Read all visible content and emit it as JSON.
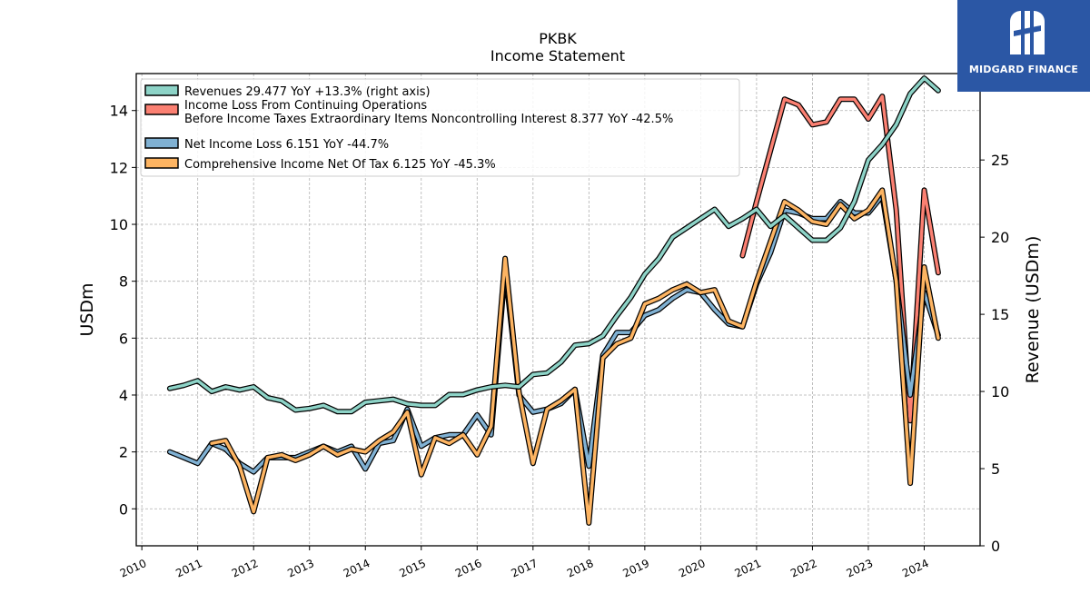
{
  "chart_data": {
    "type": "line",
    "title": "PKBK",
    "subtitle": "Income Statement",
    "ylabel_left": "USDm",
    "ylabel_right": "Revenue (USDm)",
    "ylim_left": [
      -1.3,
      15.3
    ],
    "ylim_right": [
      0,
      30.6
    ],
    "yticks_left": [
      0,
      2,
      4,
      6,
      8,
      10,
      12,
      14
    ],
    "yticks_right": [
      0,
      5,
      10,
      15,
      20,
      25,
      30
    ],
    "xlim": [
      2009.9,
      2025.0
    ],
    "xticks": [
      2010,
      2011,
      2012,
      2013,
      2014,
      2015,
      2016,
      2017,
      2018,
      2019,
      2020,
      2021,
      2022,
      2023,
      2024
    ],
    "grid": true,
    "legend_position": "top-left",
    "series": [
      {
        "name": "Revenues  29.477 YoY +13.3% (right axis)",
        "axis": "right",
        "color": "#8dd3c7",
        "x": [
          2010.5,
          2010.75,
          2011.0,
          2011.25,
          2011.5,
          2011.75,
          2012.0,
          2012.25,
          2012.5,
          2012.75,
          2013.0,
          2013.25,
          2013.5,
          2013.75,
          2014.0,
          2014.25,
          2014.5,
          2014.75,
          2015.0,
          2015.25,
          2015.5,
          2015.75,
          2016.0,
          2016.25,
          2016.5,
          2016.75,
          2017.0,
          2017.25,
          2017.5,
          2017.75,
          2018.0,
          2018.25,
          2018.5,
          2018.75,
          2019.0,
          2019.25,
          2019.5,
          2019.75,
          2020.0,
          2020.25,
          2020.5,
          2020.75,
          2021.0,
          2021.25,
          2021.5,
          2021.75,
          2022.0,
          2022.25,
          2022.5,
          2022.75,
          2023.0,
          2023.25,
          2023.5,
          2023.75,
          2024.0,
          2024.25
        ],
        "values": [
          10.2,
          10.4,
          10.7,
          10.0,
          10.3,
          10.1,
          10.3,
          9.6,
          9.4,
          8.8,
          8.9,
          9.1,
          8.7,
          8.7,
          9.3,
          9.4,
          9.5,
          9.2,
          9.1,
          9.1,
          9.8,
          9.8,
          10.1,
          10.3,
          10.4,
          10.3,
          11.1,
          11.2,
          11.9,
          13.0,
          13.1,
          13.6,
          14.9,
          16.1,
          17.6,
          18.6,
          20.0,
          20.6,
          21.2,
          21.8,
          20.7,
          21.2,
          21.8,
          20.7,
          21.4,
          20.6,
          19.8,
          19.8,
          20.6,
          22.3,
          25.0,
          26.0,
          27.3,
          29.3,
          30.3,
          29.5
        ]
      },
      {
        "name": "Income Loss From Continuing Operations Before Income Taxes Extraordinary Items Noncontrolling Interest  8.377 YoY -42.5%",
        "legend_lines": [
          "Income Loss From Continuing Operations",
          "Before Income Taxes Extraordinary Items Noncontrolling Interest  8.377 YoY -42.5%"
        ],
        "axis": "left",
        "color": "#fb8072",
        "x": [
          2020.75,
          2021.0,
          2021.25,
          2021.5,
          2021.75,
          2022.0,
          2022.25,
          2022.5,
          2022.75,
          2023.0,
          2023.25,
          2023.5,
          2023.75,
          2024.0,
          2024.25
        ],
        "values": [
          8.9,
          10.8,
          12.6,
          14.4,
          14.2,
          13.5,
          13.6,
          14.4,
          14.4,
          13.7,
          14.5,
          10.5,
          3.1,
          11.2,
          8.3
        ]
      },
      {
        "name": "Net Income Loss  6.151 YoY -44.7%",
        "axis": "left",
        "color": "#80b1d3",
        "x": [
          2010.5,
          2010.75,
          2011.0,
          2011.25,
          2011.5,
          2011.75,
          2012.0,
          2012.25,
          2012.5,
          2012.75,
          2013.0,
          2013.25,
          2013.5,
          2013.75,
          2014.0,
          2014.25,
          2014.5,
          2014.75,
          2015.0,
          2015.25,
          2015.5,
          2015.75,
          2016.0,
          2016.25,
          2016.5,
          2016.75,
          2017.0,
          2017.25,
          2017.5,
          2017.75,
          2018.0,
          2018.25,
          2018.5,
          2018.75,
          2019.0,
          2019.25,
          2019.5,
          2019.75,
          2020.0,
          2020.25,
          2020.5,
          2020.75,
          2021.0,
          2021.25,
          2021.5,
          2021.75,
          2022.0,
          2022.25,
          2022.5,
          2022.75,
          2023.0,
          2023.25,
          2023.5,
          2023.75,
          2024.0,
          2024.25
        ],
        "values": [
          2.0,
          1.8,
          1.6,
          2.3,
          2.1,
          1.6,
          1.3,
          1.8,
          1.8,
          1.8,
          2.0,
          2.2,
          2.0,
          2.2,
          1.4,
          2.3,
          2.4,
          3.5,
          2.2,
          2.5,
          2.6,
          2.6,
          3.3,
          2.6,
          8.4,
          4.0,
          3.4,
          3.5,
          3.7,
          4.2,
          1.5,
          5.4,
          6.2,
          6.2,
          6.8,
          7.0,
          7.4,
          7.7,
          7.6,
          7.0,
          6.5,
          6.4,
          7.9,
          9.0,
          10.5,
          10.4,
          10.2,
          10.2,
          10.8,
          10.4,
          10.4,
          11.0,
          8.0,
          4.0,
          7.6,
          6.1
        ]
      },
      {
        "name": "Comprehensive Income Net Of Tax  6.125 YoY -45.3%",
        "axis": "left",
        "color": "#fdb462",
        "x": [
          2011.25,
          2011.5,
          2011.75,
          2012.0,
          2012.25,
          2012.5,
          2012.75,
          2013.0,
          2013.25,
          2013.5,
          2013.75,
          2014.0,
          2014.25,
          2014.5,
          2014.75,
          2015.0,
          2015.25,
          2015.5,
          2015.75,
          2016.0,
          2016.25,
          2016.5,
          2016.75,
          2017.0,
          2017.25,
          2017.5,
          2017.75,
          2018.0,
          2018.25,
          2018.5,
          2018.75,
          2019.0,
          2019.25,
          2019.5,
          2019.75,
          2020.0,
          2020.25,
          2020.5,
          2020.75,
          2021.0,
          2021.25,
          2021.5,
          2021.75,
          2022.0,
          2022.25,
          2022.5,
          2022.75,
          2023.0,
          2023.25,
          2023.5,
          2023.75,
          2024.0,
          2024.25
        ],
        "values": [
          2.3,
          2.4,
          1.5,
          -0.1,
          1.8,
          1.9,
          1.7,
          1.9,
          2.2,
          1.9,
          2.1,
          2.0,
          2.4,
          2.7,
          3.4,
          1.2,
          2.5,
          2.3,
          2.6,
          1.9,
          2.9,
          8.8,
          4.1,
          1.6,
          3.5,
          3.8,
          4.2,
          -0.5,
          5.3,
          5.8,
          6.0,
          7.2,
          7.4,
          7.7,
          7.9,
          7.6,
          7.7,
          6.6,
          6.4,
          8.0,
          9.4,
          10.8,
          10.5,
          10.1,
          10.0,
          10.7,
          10.2,
          10.5,
          11.2,
          8.0,
          0.9,
          8.5,
          6.0
        ]
      }
    ]
  },
  "logo": {
    "text": "MIDGARD FINANCE"
  }
}
